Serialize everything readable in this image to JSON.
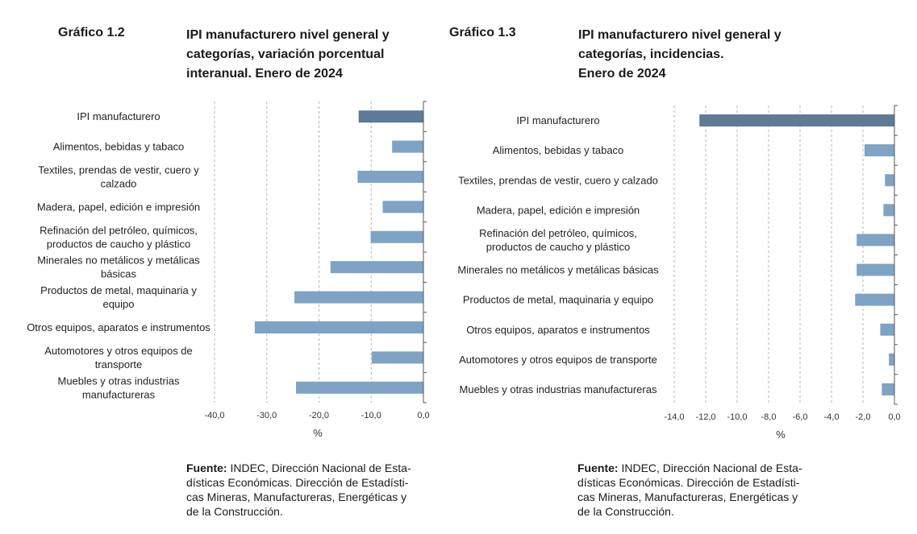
{
  "charts": [
    {
      "figure_number": "Gráfico 1.2",
      "title_lines": [
        "IPI manufacturero nivel general y",
        "categorías, variación porcentual",
        "interanual. Enero de 2024"
      ],
      "source_label": "Fuente:",
      "source_lines": [
        " INDEC, Dirección Nacional de Esta-",
        "dísticas Económicas. Dirección de Estadísti-",
        "cas Mineras, Manufactureras, Energéticas y",
        "de la Construcción."
      ]
    },
    {
      "figure_number": "Gráfico 1.3",
      "title_lines": [
        "IPI manufacturero nivel general y",
        "categorías, incidencias.",
        "Enero de 2024"
      ],
      "source_label": "Fuente:",
      "source_lines": [
        " INDEC, Dirección Nacional de Esta-",
        "dísticas Económicas. Dirección de Estadísti-",
        "cas Mineras, Manufactureras, Energéticas y",
        "de la Construcción."
      ]
    }
  ],
  "colors": {
    "highlight_bar": "#5f7a94",
    "bar": "#7ea3c5",
    "grid": "#b5b5b5",
    "axis": "#555555"
  },
  "chart_data": [
    {
      "type": "bar",
      "orientation": "horizontal",
      "categories": [
        [
          "IPI manufacturero"
        ],
        [
          "Alimentos, bebidas y tabaco"
        ],
        [
          "Textiles, prendas de vestir, cuero y",
          "calzado"
        ],
        [
          "Madera, papel, edición e impresión"
        ],
        [
          "Refinación del petróleo, químicos,",
          "productos de caucho y plástico"
        ],
        [
          "Minerales no metálicos y metálicas",
          "básicas"
        ],
        [
          "Productos de metal, maquinaria y",
          "equipo"
        ],
        [
          "Otros equipos, aparatos e instrumentos"
        ],
        [
          "Automotores y otros equipos de",
          "transporte"
        ],
        [
          "Muebles y otras industrias",
          "manufactureras"
        ]
      ],
      "values": [
        -12.4,
        -6.0,
        -12.6,
        -7.8,
        -10.1,
        -17.8,
        -24.7,
        -32.3,
        -9.9,
        -24.4
      ],
      "xlabel": "%",
      "xlim": [
        -40,
        0
      ],
      "xticks": [
        "-40,0",
        "-30,0",
        "-20,0",
        "-10,0",
        "0,0"
      ],
      "grid": "vertical dashed",
      "highlight_first": true
    },
    {
      "type": "bar",
      "orientation": "horizontal",
      "categories": [
        [
          "IPI manufacturero"
        ],
        [
          "Alimentos, bebidas y tabaco"
        ],
        [
          "Textiles, prendas de vestir, cuero y calzado"
        ],
        [
          "Madera, papel, edición e impresión"
        ],
        [
          "Refinación del petróleo, químicos,",
          "productos de caucho y plástico"
        ],
        [
          "Minerales no metálicos y metálicas básicas"
        ],
        [
          "Productos de metal, maquinaria y equipo"
        ],
        [
          "Otros equipos, aparatos e instrumentos"
        ],
        [
          "Automotores y otros equipos de transporte"
        ],
        [
          "Muebles y otras industrias manufactureras"
        ]
      ],
      "values": [
        -12.4,
        -1.9,
        -0.6,
        -0.7,
        -2.4,
        -2.4,
        -2.5,
        -0.9,
        -0.35,
        -0.8
      ],
      "xlabel": "%",
      "xlim": [
        -14,
        0
      ],
      "xticks": [
        "-14,0",
        "-12,0",
        "-10,0",
        "-8,0",
        "-6,0",
        "-4,0",
        "-2,0",
        "0,0"
      ],
      "grid": "vertical dashed",
      "highlight_first": true
    }
  ]
}
